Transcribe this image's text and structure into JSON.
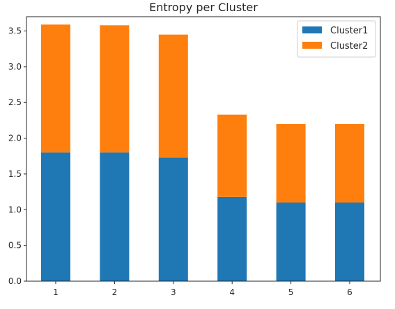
{
  "chart_data": {
    "type": "bar",
    "stacked": true,
    "title": "Entropy per Cluster",
    "xlabel": "",
    "ylabel": "",
    "categories": [
      "1",
      "2",
      "3",
      "4",
      "5",
      "6"
    ],
    "series": [
      {
        "name": "Cluster1",
        "color": "#1f77b4",
        "values": [
          1.8,
          1.8,
          1.73,
          1.18,
          1.1,
          1.1
        ]
      },
      {
        "name": "Cluster2",
        "color": "#ff7f0e",
        "values": [
          1.79,
          1.78,
          1.72,
          1.15,
          1.1,
          1.1
        ]
      }
    ],
    "ylim": [
      0,
      3.7
    ],
    "yticks": [
      "0.0",
      "0.5",
      "1.0",
      "1.5",
      "2.0",
      "2.5",
      "3.0",
      "3.5"
    ],
    "grid": false,
    "legend_position": "top-right"
  }
}
